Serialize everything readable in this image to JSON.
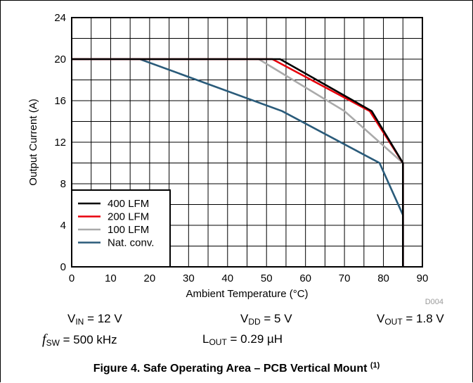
{
  "chart_data": {
    "type": "line",
    "xlabel": "Ambient Temperature (°C)",
    "ylabel": "Output Current (A)",
    "xlim": [
      0,
      90
    ],
    "ylim": [
      0,
      24
    ],
    "xticks": [
      0,
      10,
      20,
      30,
      40,
      50,
      60,
      70,
      80,
      90
    ],
    "yticks": [
      0,
      4,
      8,
      12,
      16,
      20,
      24
    ],
    "grid": true,
    "legend_position": "bottom-left",
    "figure_code": "D004",
    "series": [
      {
        "name": "400 LFM",
        "color": "#000000",
        "points": [
          [
            0,
            20
          ],
          [
            53.5,
            20
          ],
          [
            77,
            15
          ],
          [
            85,
            10
          ],
          [
            85,
            0
          ]
        ]
      },
      {
        "name": "200 LFM",
        "color": "#e8000b",
        "points": [
          [
            0,
            20
          ],
          [
            51.5,
            20
          ],
          [
            76.5,
            15
          ],
          [
            85,
            10
          ],
          [
            85,
            0
          ]
        ]
      },
      {
        "name": "100 LFM",
        "color": "#aaaaaa",
        "points": [
          [
            0,
            20
          ],
          [
            48,
            20
          ],
          [
            70,
            15
          ],
          [
            85,
            10
          ],
          [
            85,
            0
          ]
        ]
      },
      {
        "name": "Nat. conv.",
        "color": "#2a5b7a",
        "points": [
          [
            0,
            20
          ],
          [
            17.5,
            20
          ],
          [
            54,
            15
          ],
          [
            79,
            10
          ],
          [
            85,
            5
          ],
          [
            85,
            0
          ]
        ]
      }
    ]
  },
  "conditions": {
    "vin": {
      "sym": "V",
      "sub": "IN",
      "val": " = 12 V"
    },
    "vdd": {
      "sym": "V",
      "sub": "DD",
      "val": " = 5 V"
    },
    "vout": {
      "sym": "V",
      "sub": "OUT",
      "val": " = 1.8 V"
    },
    "fsw": {
      "sym": "f",
      "sub": "SW",
      "val": " = 500 kHz"
    },
    "lout": {
      "sym": "L",
      "sub": "OUT",
      "val": " = 0.29 µH"
    }
  },
  "caption": {
    "text": "Figure 4. Safe Operating Area – PCB Vertical Mount ",
    "note": "(1)"
  }
}
